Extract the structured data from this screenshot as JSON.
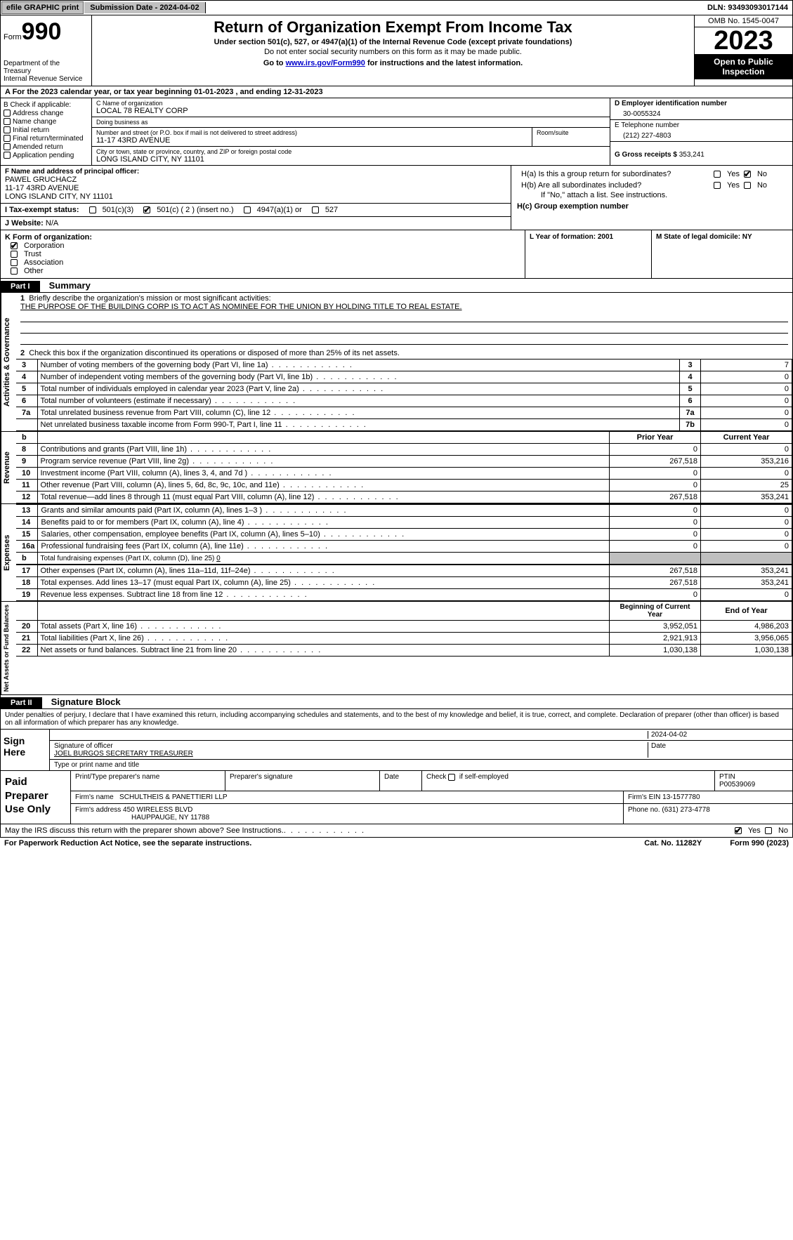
{
  "topbar": {
    "efile": "efile GRAPHIC print",
    "submission": "Submission Date - 2024-04-02",
    "dln": "DLN: 93493093017144"
  },
  "header": {
    "form_word": "Form",
    "form_num": "990",
    "dept": "Department of the Treasury\nInternal Revenue Service",
    "title": "Return of Organization Exempt From Income Tax",
    "sub1": "Under section 501(c), 527, or 4947(a)(1) of the Internal Revenue Code (except private foundations)",
    "sub2": "Do not enter social security numbers on this form as it may be made public.",
    "sub3_pre": "Go to ",
    "sub3_link": "www.irs.gov/Form990",
    "sub3_post": " for instructions and the latest information.",
    "omb": "OMB No. 1545-0047",
    "year": "2023",
    "open": "Open to Public Inspection"
  },
  "row_a": "A For the 2023 calendar year, or tax year beginning 01-01-2023    , and ending 12-31-2023",
  "col_b": {
    "hdr": "B Check if applicable:",
    "opts": [
      "Address change",
      "Name change",
      "Initial return",
      "Final return/terminated",
      "Amended return",
      "Application pending"
    ]
  },
  "col_c": {
    "name_lbl": "C Name of organization",
    "name": "LOCAL 78 REALTY CORP",
    "dba_lbl": "Doing business as",
    "dba": "",
    "addr_lbl": "Number and street (or P.O. box if mail is not delivered to street address)",
    "addr": "11-17 43RD AVENUE",
    "room_lbl": "Room/suite",
    "room": "",
    "city_lbl": "City or town, state or province, country, and ZIP or foreign postal code",
    "city": "LONG ISLAND CITY, NY  11101"
  },
  "col_d": {
    "ein_lbl": "D Employer identification number",
    "ein": "30-0055324",
    "phone_lbl": "E Telephone number",
    "phone": "(212) 227-4803",
    "gross_lbl": "G Gross receipts $ ",
    "gross": "353,241"
  },
  "row_f": {
    "lbl": "F  Name and address of principal officer:",
    "name": "PAWEL GRUCHACZ",
    "addr1": "11-17 43RD AVENUE",
    "addr2": "LONG ISLAND CITY, NY  11101"
  },
  "row_h": {
    "ha": "H(a)  Is this a group return for subordinates?",
    "hb": "H(b)  Are all subordinates included?",
    "hb2": "If \"No,\" attach a list. See instructions.",
    "hc": "H(c)  Group exemption number ",
    "yes": "Yes",
    "no": "No"
  },
  "row_i": {
    "lbl": "I    Tax-exempt status:",
    "o1": "501(c)(3)",
    "o2": "501(c) ( 2 ) (insert no.)",
    "o3": "4947(a)(1) or",
    "o4": "527"
  },
  "row_j": {
    "lbl": "J    Website: ",
    "val": "N/A"
  },
  "row_k": {
    "lbl": "K Form of organization:",
    "opts": [
      "Corporation",
      "Trust",
      "Association",
      "Other"
    ],
    "l": "L Year of formation: 2001",
    "m": "M State of legal domicile: NY"
  },
  "part1": {
    "hdr": "Part I",
    "title": "Summary"
  },
  "gov": {
    "label": "Activities & Governance",
    "l1": "Briefly describe the organization's mission or most significant activities:",
    "l1v": "THE PURPOSE OF THE BUILDING CORP IS TO ACT AS NOMINEE FOR THE UNION BY HOLDING TITLE TO REAL ESTATE.",
    "l2": "Check this box       if the organization discontinued its operations or disposed of more than 25% of its net assets.",
    "rows": [
      {
        "n": "3",
        "d": "Number of voting members of the governing body (Part VI, line 1a)",
        "k": "3",
        "v": "7"
      },
      {
        "n": "4",
        "d": "Number of independent voting members of the governing body (Part VI, line 1b)",
        "k": "4",
        "v": "0"
      },
      {
        "n": "5",
        "d": "Total number of individuals employed in calendar year 2023 (Part V, line 2a)",
        "k": "5",
        "v": "0"
      },
      {
        "n": "6",
        "d": "Total number of volunteers (estimate if necessary)",
        "k": "6",
        "v": "0"
      },
      {
        "n": "7a",
        "d": "Total unrelated business revenue from Part VIII, column (C), line 12",
        "k": "7a",
        "v": "0"
      },
      {
        "n": "",
        "d": "Net unrelated business taxable income from Form 990-T, Part I, line 11",
        "k": "7b",
        "v": "0"
      }
    ]
  },
  "rev": {
    "label": "Revenue",
    "hdr_prior": "Prior Year",
    "hdr_curr": "Current Year",
    "rows": [
      {
        "n": "8",
        "d": "Contributions and grants (Part VIII, line 1h)",
        "p": "0",
        "c": "0"
      },
      {
        "n": "9",
        "d": "Program service revenue (Part VIII, line 2g)",
        "p": "267,518",
        "c": "353,216"
      },
      {
        "n": "10",
        "d": "Investment income (Part VIII, column (A), lines 3, 4, and 7d )",
        "p": "0",
        "c": "0"
      },
      {
        "n": "11",
        "d": "Other revenue (Part VIII, column (A), lines 5, 6d, 8c, 9c, 10c, and 11e)",
        "p": "0",
        "c": "25"
      },
      {
        "n": "12",
        "d": "Total revenue—add lines 8 through 11 (must equal Part VIII, column (A), line 12)",
        "p": "267,518",
        "c": "353,241"
      }
    ]
  },
  "exp": {
    "label": "Expenses",
    "rows": [
      {
        "n": "13",
        "d": "Grants and similar amounts paid (Part IX, column (A), lines 1–3 )",
        "p": "0",
        "c": "0"
      },
      {
        "n": "14",
        "d": "Benefits paid to or for members (Part IX, column (A), line 4)",
        "p": "0",
        "c": "0"
      },
      {
        "n": "15",
        "d": "Salaries, other compensation, employee benefits (Part IX, column (A), lines 5–10)",
        "p": "0",
        "c": "0"
      },
      {
        "n": "16a",
        "d": "Professional fundraising fees (Part IX, column (A), line 11e)",
        "p": "0",
        "c": "0"
      }
    ],
    "l16b_pre": "Total fundraising expenses (Part IX, column (D), line 25) ",
    "l16b_val": "0",
    "rows2": [
      {
        "n": "17",
        "d": "Other expenses (Part IX, column (A), lines 11a–11d, 11f–24e)",
        "p": "267,518",
        "c": "353,241"
      },
      {
        "n": "18",
        "d": "Total expenses. Add lines 13–17 (must equal Part IX, column (A), line 25)",
        "p": "267,518",
        "c": "353,241"
      },
      {
        "n": "19",
        "d": "Revenue less expenses. Subtract line 18 from line 12",
        "p": "0",
        "c": "0"
      }
    ]
  },
  "net": {
    "label": "Net Assets or Fund Balances",
    "hdr_beg": "Beginning of Current Year",
    "hdr_end": "End of Year",
    "rows": [
      {
        "n": "20",
        "d": "Total assets (Part X, line 16)",
        "p": "3,952,051",
        "c": "4,986,203"
      },
      {
        "n": "21",
        "d": "Total liabilities (Part X, line 26)",
        "p": "2,921,913",
        "c": "3,956,065"
      },
      {
        "n": "22",
        "d": "Net assets or fund balances. Subtract line 21 from line 20",
        "p": "1,030,138",
        "c": "1,030,138"
      }
    ]
  },
  "part2": {
    "hdr": "Part II",
    "title": "Signature Block"
  },
  "decl": "Under penalties of perjury, I declare that I have examined this return, including accompanying schedules and statements, and to the best of my knowledge and belief, it is true, correct, and complete. Declaration of preparer (other than officer) is based on all information of which preparer has any knowledge.",
  "sign": {
    "left": "Sign Here",
    "date": "2024-04-02",
    "sig_lbl": "Signature of officer",
    "name": "JOEL BURGOS  SECRETARY TREASURER",
    "name_lbl": "Type or print name and title",
    "date_lbl": "Date"
  },
  "prep": {
    "left": "Paid Preparer Use Only",
    "h1": "Print/Type preparer's name",
    "h2": "Preparer's signature",
    "h3": "Date",
    "h4": "Check        if self-employed",
    "h5": "PTIN",
    "ptin": "P00539069",
    "firm_lbl": "Firm's name   ",
    "firm": "SCHULTHEIS & PANETTIERI LLP",
    "ein_lbl": "Firm's EIN  ",
    "ein": "13-1577780",
    "addr_lbl": "Firm's address ",
    "addr1": "450 WIRELESS BLVD",
    "addr2": "HAUPPAUGE, NY  11788",
    "phone_lbl": "Phone no. ",
    "phone": "(631) 273-4778"
  },
  "discuss": "May the IRS discuss this return with the preparer shown above? See Instructions.",
  "bottom": {
    "l": "For Paperwork Reduction Act Notice, see the separate instructions.",
    "m": "Cat. No. 11282Y",
    "r": "Form 990 (2023)"
  },
  "colors": {
    "grey": "#bfbfbf",
    "black": "#000000",
    "link": "#0000cc"
  }
}
